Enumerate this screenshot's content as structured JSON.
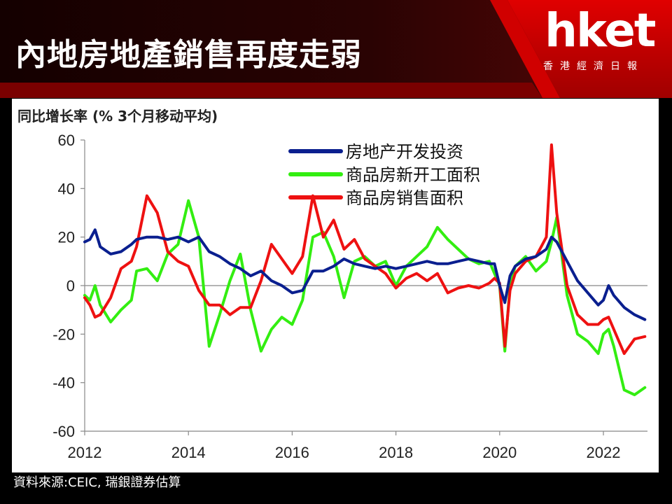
{
  "page": {
    "title": "內地房地產銷售再度走弱"
  },
  "logo": {
    "name": "hket",
    "sub": "香港經濟日報"
  },
  "source": "資料來源:CEIC, 瑞銀證券估算",
  "colors": {
    "banner_dark": "#1a0000",
    "banner_red": "#c00000",
    "logo_red": "#d40000"
  },
  "chart_data": {
    "type": "line",
    "title": "",
    "ylabel": "同比增长率 (% 3个月移动平均)",
    "xlabel": "",
    "xlim": [
      2012,
      2022.85
    ],
    "ylim": [
      -60,
      60
    ],
    "xticks": [
      "2012",
      "2014",
      "2016",
      "2018",
      "2020",
      "2022"
    ],
    "xtick_values": [
      2012,
      2014,
      2016,
      2018,
      2020,
      2022
    ],
    "yticks": [
      "60",
      "40",
      "20",
      "0",
      "-20",
      "-40",
      "-60"
    ],
    "ytick_values": [
      60,
      40,
      20,
      0,
      -20,
      -40,
      -60
    ],
    "grid": false,
    "legend_position": "top-right",
    "series": [
      {
        "name": "房地产开发投资",
        "color": "#0a1f8f",
        "x": [
          2012.0,
          2012.1,
          2012.2,
          2012.3,
          2012.5,
          2012.7,
          2012.9,
          2013.0,
          2013.2,
          2013.4,
          2013.6,
          2013.8,
          2014.0,
          2014.2,
          2014.4,
          2014.6,
          2014.8,
          2015.0,
          2015.2,
          2015.4,
          2015.6,
          2015.8,
          2016.0,
          2016.2,
          2016.4,
          2016.6,
          2016.8,
          2017.0,
          2017.2,
          2017.4,
          2017.6,
          2017.8,
          2018.0,
          2018.2,
          2018.4,
          2018.6,
          2018.8,
          2019.0,
          2019.2,
          2019.4,
          2019.6,
          2019.8,
          2019.9,
          2020.0,
          2020.1,
          2020.2,
          2020.3,
          2020.5,
          2020.7,
          2020.9,
          2021.0,
          2021.1,
          2021.3,
          2021.5,
          2021.7,
          2021.9,
          2022.0,
          2022.1,
          2022.2,
          2022.4,
          2022.6,
          2022.8
        ],
        "values": [
          18,
          19,
          23,
          16,
          13,
          14,
          17,
          19,
          20,
          20,
          19,
          20,
          18,
          20,
          14,
          12,
          9,
          7,
          4,
          6,
          2,
          0,
          -3,
          -2,
          6,
          6,
          8,
          11,
          9,
          8,
          7,
          8,
          7,
          8,
          9,
          10,
          9,
          9,
          10,
          11,
          10,
          9,
          9,
          0,
          -7,
          4,
          8,
          11,
          12,
          15,
          20,
          18,
          10,
          2,
          -3,
          -8,
          -6,
          0,
          -4,
          -9,
          -12,
          -14
        ]
      },
      {
        "name": "商品房新开工面积",
        "color": "#33ee11",
        "x": [
          2012.0,
          2012.1,
          2012.2,
          2012.3,
          2012.5,
          2012.7,
          2012.9,
          2013.0,
          2013.2,
          2013.4,
          2013.6,
          2013.8,
          2014.0,
          2014.2,
          2014.4,
          2014.6,
          2014.8,
          2015.0,
          2015.2,
          2015.4,
          2015.6,
          2015.8,
          2016.0,
          2016.2,
          2016.4,
          2016.6,
          2016.8,
          2017.0,
          2017.2,
          2017.4,
          2017.6,
          2017.8,
          2018.0,
          2018.2,
          2018.4,
          2018.6,
          2018.8,
          2019.0,
          2019.2,
          2019.4,
          2019.6,
          2019.8,
          2019.9,
          2020.0,
          2020.1,
          2020.2,
          2020.3,
          2020.5,
          2020.7,
          2020.9,
          2021.0,
          2021.1,
          2021.3,
          2021.5,
          2021.7,
          2021.9,
          2022.0,
          2022.1,
          2022.2,
          2022.4,
          2022.6,
          2022.8
        ],
        "values": [
          -4,
          -6,
          0,
          -8,
          -15,
          -10,
          -6,
          6,
          7,
          2,
          13,
          17,
          35,
          20,
          -25,
          -12,
          2,
          13,
          -10,
          -27,
          -18,
          -13,
          -16,
          -6,
          20,
          22,
          12,
          -5,
          10,
          12,
          8,
          10,
          0,
          8,
          12,
          16,
          24,
          19,
          15,
          11,
          9,
          10,
          5,
          0,
          -27,
          0,
          8,
          12,
          6,
          10,
          18,
          28,
          -4,
          -20,
          -23,
          -28,
          -20,
          -18,
          -25,
          -43,
          -45,
          -42
        ]
      },
      {
        "name": "商品房销售面积",
        "color": "#ee1111",
        "x": [
          2012.0,
          2012.1,
          2012.2,
          2012.3,
          2012.5,
          2012.7,
          2012.9,
          2013.0,
          2013.2,
          2013.4,
          2013.6,
          2013.8,
          2014.0,
          2014.2,
          2014.4,
          2014.6,
          2014.8,
          2015.0,
          2015.2,
          2015.4,
          2015.6,
          2015.8,
          2016.0,
          2016.2,
          2016.4,
          2016.6,
          2016.8,
          2017.0,
          2017.2,
          2017.4,
          2017.6,
          2017.8,
          2018.0,
          2018.2,
          2018.4,
          2018.6,
          2018.8,
          2019.0,
          2019.2,
          2019.4,
          2019.6,
          2019.8,
          2019.9,
          2020.0,
          2020.1,
          2020.2,
          2020.3,
          2020.5,
          2020.7,
          2020.9,
          2021.0,
          2021.1,
          2021.3,
          2021.5,
          2021.7,
          2021.9,
          2022.0,
          2022.1,
          2022.2,
          2022.4,
          2022.6,
          2022.8
        ],
        "values": [
          -5,
          -8,
          -13,
          -12,
          -5,
          7,
          10,
          16,
          37,
          30,
          14,
          10,
          8,
          -2,
          -8,
          -8,
          -12,
          -9,
          -9,
          2,
          17,
          11,
          5,
          12,
          37,
          20,
          27,
          15,
          19,
          11,
          8,
          5,
          -1,
          3,
          5,
          2,
          5,
          -3,
          -1,
          0,
          -1,
          1,
          3,
          1,
          -25,
          -2,
          5,
          10,
          12,
          20,
          58,
          30,
          0,
          -12,
          -16,
          -16,
          -14,
          -13,
          -18,
          -28,
          -22,
          -21
        ]
      }
    ]
  }
}
